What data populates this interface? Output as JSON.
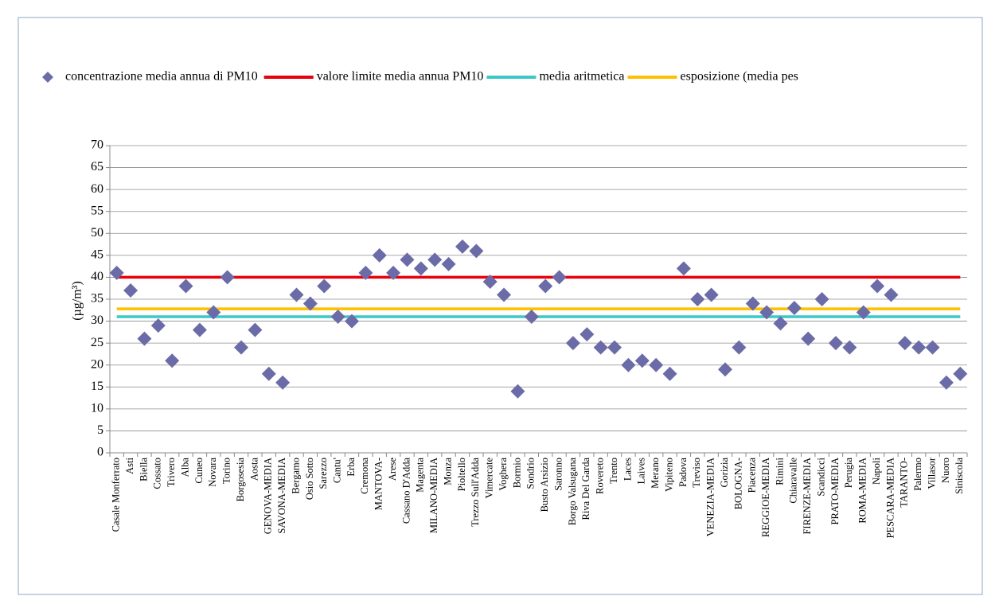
{
  "chart_data": {
    "type": "scatter",
    "y_label": "(µg/m³)",
    "categories": [
      "Casale Monferrato",
      "Asti",
      "Biella",
      "Cossato",
      "Trivero",
      "Alba",
      "Cuneo",
      "Novara",
      "Torino",
      "Borgosesia",
      "Aosta",
      "GENOVA-MEDIA",
      "SAVONA-MEDIA",
      "Bergamo",
      "Osio Sotto",
      "Sarezzo",
      "Cantu'",
      "Erba",
      "Cremona",
      "MANTOVA-",
      "Arese",
      "Cassano D'Adda",
      "Magenta",
      "MILANO-MEDIA",
      "Monza",
      "Pioltello",
      "Trezzo Sull'Adda",
      "Vimercate",
      "Voghera",
      "Bormio",
      "Sondrio",
      "Busto Arsizio",
      "Saronno",
      "Borgo Valsugana",
      "Riva Del Garda",
      "Rovereto",
      "Trento",
      "Laces",
      "Laives",
      "Merano",
      "Vipiteno",
      "Padova",
      "Treviso",
      "VENEZIA-MEDIA",
      "Gorizia",
      "BOLOGNA-",
      "Piacenza",
      "REGGIOE-MEDIA",
      "Rimini",
      "Chiaravalle",
      "FIRENZE-MEDIA",
      "Scandicci",
      "PRATO-MEDIA",
      "Perugia",
      "ROMA-MEDIA",
      "Napoli",
      "PESCARA-MEDIA",
      "TARANTO-",
      "Palermo",
      "Villasor",
      "Nuoro",
      "Siniscola"
    ],
    "series": [
      {
        "name": "concentrazione media annua di PM10",
        "color": "#6b6ba8",
        "values": [
          41,
          37,
          26,
          29,
          21,
          38,
          28,
          32,
          40,
          24,
          28,
          18,
          16,
          36,
          34,
          38,
          31,
          30,
          41,
          45,
          41,
          44,
          42,
          44,
          43,
          47,
          46,
          39,
          36,
          14,
          31,
          38,
          40,
          25,
          27,
          24,
          24,
          20,
          21,
          20,
          18,
          42,
          35,
          36,
          19,
          24,
          34,
          32,
          29.5,
          33,
          26,
          35,
          25,
          24,
          32,
          38,
          36,
          25,
          24,
          24,
          16,
          18
        ]
      }
    ],
    "lines": [
      {
        "name": "valore limite media annua PM10",
        "color": "#e8000b",
        "value": 40
      },
      {
        "name": "media aritmetica",
        "color": "#3cc8c8",
        "value": 31
      },
      {
        "name": "esposizione  (media pes",
        "color": "#ffc000",
        "value": 32.8
      }
    ],
    "ylim": [
      0,
      70
    ],
    "yticks": [
      0,
      5,
      10,
      15,
      20,
      25,
      30,
      35,
      40,
      45,
      50,
      55,
      60,
      65,
      70
    ],
    "grid": true
  }
}
